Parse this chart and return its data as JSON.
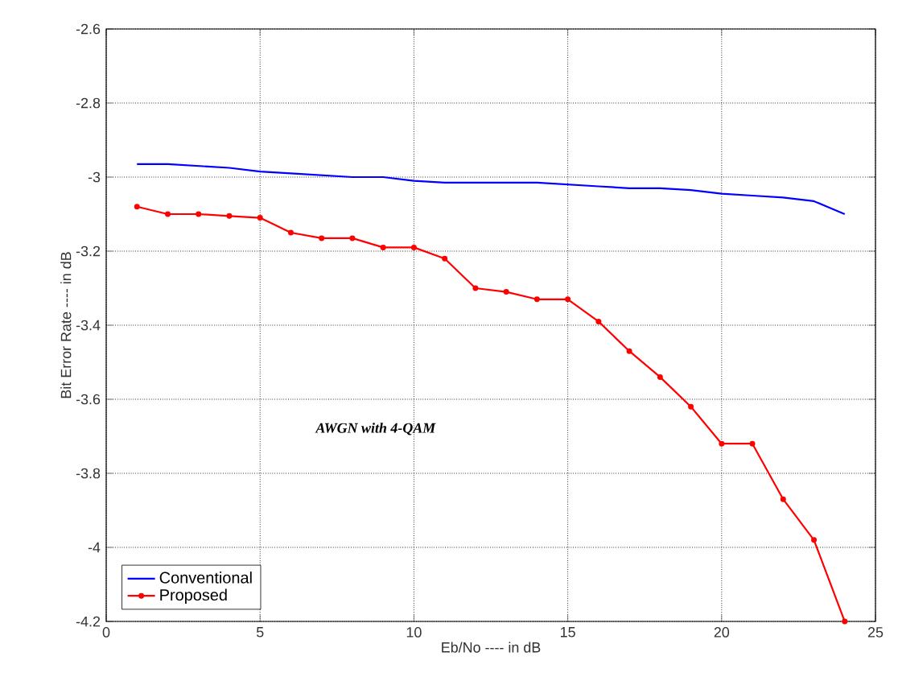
{
  "chart_data": {
    "type": "line",
    "xlabel": "Eb/No ---- in dB",
    "ylabel": "Bit Error Rate ---- in dB",
    "x": [
      1,
      2,
      3,
      4,
      5,
      6,
      7,
      8,
      9,
      10,
      11,
      12,
      13,
      14,
      15,
      16,
      17,
      18,
      19,
      20,
      21,
      22,
      23,
      24
    ],
    "series": [
      {
        "name": "Conventional",
        "color": "#0000ff",
        "marker": "none",
        "values": [
          -2.965,
          -2.965,
          -2.97,
          -2.975,
          -2.985,
          -2.99,
          -2.995,
          -3.0,
          -3.0,
          -3.01,
          -3.015,
          -3.015,
          -3.015,
          -3.015,
          -3.02,
          -3.025,
          -3.03,
          -3.03,
          -3.035,
          -3.045,
          -3.05,
          -3.055,
          -3.065,
          -3.1
        ]
      },
      {
        "name": "Proposed",
        "color": "#ff0000",
        "marker": "circle",
        "values": [
          -3.08,
          -3.1,
          -3.1,
          -3.105,
          -3.11,
          -3.15,
          -3.165,
          -3.165,
          -3.19,
          -3.19,
          -3.22,
          -3.3,
          -3.31,
          -3.33,
          -3.33,
          -3.39,
          -3.47,
          -3.54,
          -3.62,
          -3.72,
          -3.72,
          -3.87,
          -3.98,
          -4.2
        ]
      }
    ],
    "xlim": [
      0,
      25
    ],
    "xticks": [
      0,
      5,
      10,
      15,
      20,
      25
    ],
    "ylim": [
      -4.2,
      -2.6
    ],
    "yticks": [
      -4.2,
      -4,
      -3.8,
      -3.6,
      -3.4,
      -3.2,
      -3,
      -2.8,
      -2.6
    ],
    "grid": true,
    "legend": "bottom left",
    "annotations": [
      "AWGN with 4-QAM"
    ]
  }
}
